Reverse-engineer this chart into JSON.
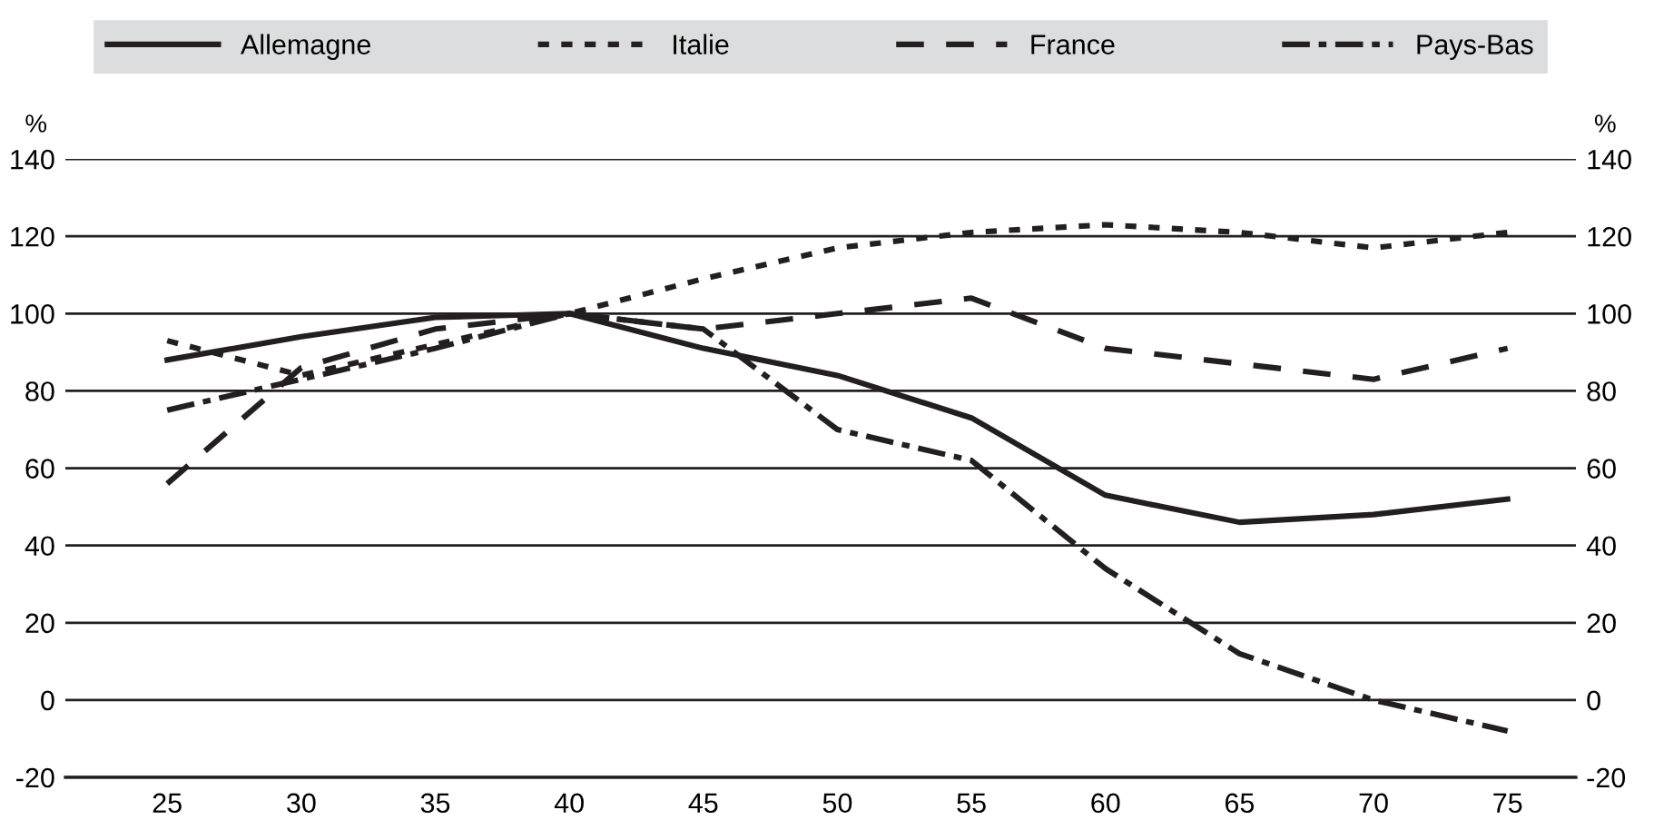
{
  "chart_data": {
    "type": "line",
    "ylabel": "%",
    "y2label": "%",
    "categories": [
      "25",
      "30",
      "35",
      "40",
      "45",
      "50",
      "55",
      "60",
      "65",
      "70",
      "75"
    ],
    "series": [
      {
        "name": "Allemagne",
        "color": "#231f20",
        "line_style": "solid",
        "values": [
          88,
          94,
          99,
          100,
          91,
          84,
          73,
          53,
          46,
          48,
          52
        ]
      },
      {
        "name": "Italie",
        "color": "#231f20",
        "line_style": "dotted",
        "values": [
          93,
          84,
          92,
          100,
          109,
          117,
          121,
          123,
          121,
          117,
          121
        ]
      },
      {
        "name": "France",
        "color": "#231f20",
        "line_style": "dashed",
        "values": [
          56,
          86,
          96,
          100,
          96,
          100,
          104,
          91,
          87,
          83,
          91
        ]
      },
      {
        "name": "Pays-Bas",
        "color": "#231f20",
        "line_style": "dashdot",
        "values": [
          75,
          83,
          91,
          100,
          96,
          70,
          62,
          34,
          12,
          0,
          -8
        ]
      }
    ],
    "ylim": [
      -20,
      140
    ],
    "yticks": [
      -20,
      0,
      20,
      40,
      60,
      80,
      100,
      120,
      140
    ],
    "y2lim": [
      -20,
      140
    ],
    "y2ticks": [
      -20,
      0,
      20,
      40,
      60,
      80,
      100,
      120,
      140
    ],
    "grid": "y",
    "legend": "top",
    "marker": "none"
  }
}
